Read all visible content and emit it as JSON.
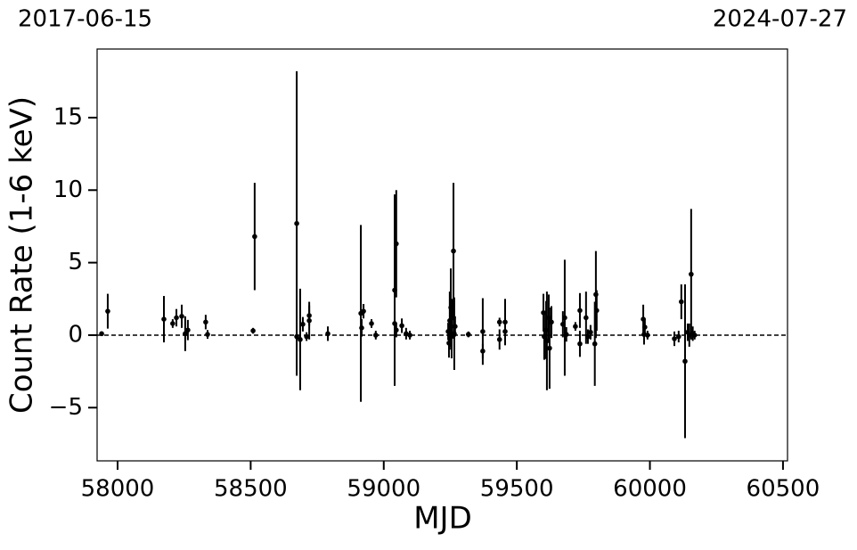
{
  "chart_data": {
    "type": "errorbar",
    "annotations": [
      "2017-06-15",
      "2024-07-27"
    ],
    "xlabel": "MJD",
    "ylabel": "Count Rate (1-6 keV)",
    "color": "#000000",
    "hline": 0,
    "x": [
      57940,
      57963,
      58174,
      58207,
      58221,
      58241,
      58254,
      58264,
      58331,
      58338,
      58509,
      58515,
      58673,
      58673,
      58686,
      58696,
      58710,
      58720,
      58720,
      58790,
      58914,
      58917,
      58924,
      58954,
      58970,
      59041,
      59041,
      59047,
      59047,
      59068,
      59084,
      59098,
      59242,
      59245,
      59248,
      59252,
      59255,
      59258,
      59262,
      59265,
      59268,
      59318,
      59372,
      59372,
      59435,
      59435,
      59456,
      59456,
      59600,
      59603,
      59610,
      59613,
      59620,
      59623,
      59630,
      59673,
      59680,
      59686,
      59720,
      59737,
      59737,
      59760,
      59767,
      59777,
      59793,
      59797,
      59800,
      59975,
      59978,
      59981,
      59991,
      60092,
      60108,
      60118,
      60132,
      60142,
      60148,
      60155,
      60161,
      60168
    ],
    "values": [
      0.1,
      1.65,
      1.1,
      0.8,
      1.2,
      1.3,
      0.1,
      0.35,
      0.9,
      0.05,
      0.3,
      6.8,
      7.7,
      -0.1,
      -0.3,
      0.75,
      -0.1,
      1.0,
      1.35,
      0.1,
      1.5,
      0.5,
      1.65,
      0.8,
      0.0,
      0.8,
      3.1,
      6.3,
      0.35,
      0.65,
      0.1,
      0.0,
      0.25,
      -0.55,
      1.0,
      1.9,
      -0.1,
      1.2,
      5.8,
      0.1,
      0.6,
      0.05,
      0.25,
      -1.1,
      0.9,
      -0.3,
      0.9,
      0.25,
      1.55,
      -0.1,
      0.35,
      -0.4,
      1.2,
      -0.9,
      0.9,
      0.75,
      1.2,
      0.05,
      0.6,
      1.7,
      -0.6,
      1.2,
      -0.1,
      0.2,
      -0.6,
      2.8,
      1.7,
      1.1,
      0.05,
      0.55,
      0.0,
      -0.25,
      -0.1,
      2.3,
      -1.8,
      0.2,
      0.0,
      4.2,
      0.1,
      0.0
    ],
    "errors": [
      0.1,
      1.2,
      1.6,
      0.3,
      0.6,
      0.8,
      1.2,
      0.7,
      0.5,
      0.3,
      0.2,
      3.7,
      10.5,
      0.3,
      3.5,
      0.5,
      0.3,
      1.3,
      0.7,
      0.5,
      6.1,
      0.6,
      0.5,
      0.3,
      0.3,
      0.4,
      6.6,
      3.7,
      0.5,
      0.5,
      0.4,
      0.3,
      0.6,
      1.0,
      2.0,
      2.7,
      1.5,
      1.3,
      4.7,
      2.5,
      0.7,
      0.2,
      2.3,
      0.5,
      0.3,
      0.7,
      1.6,
      0.4,
      1.3,
      1.6,
      2.0,
      3.4,
      1.6,
      2.8,
      1.1,
      0.9,
      4.0,
      0.5,
      0.3,
      1.2,
      0.9,
      1.8,
      0.5,
      0.5,
      2.9,
      3.0,
      1.4,
      1.0,
      0.7,
      0.6,
      0.3,
      0.5,
      0.4,
      1.2,
      5.3,
      0.6,
      0.8,
      4.5,
      0.5,
      0.3
    ],
    "xlim": [
      57923,
      60517
    ],
    "ylim": [
      -8.67,
      19.73
    ],
    "xticks": [
      58000,
      58500,
      59000,
      59500,
      60000,
      60500
    ],
    "yticks": [
      {
        "value": -5,
        "label": "−5"
      },
      0,
      5,
      10,
      15
    ]
  }
}
